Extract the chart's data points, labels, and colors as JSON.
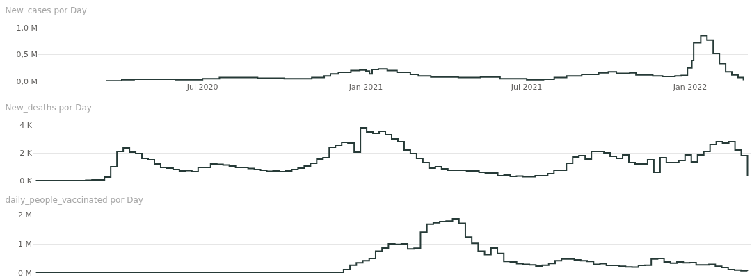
{
  "chart_data": [
    {
      "type": "step",
      "title": "New_cases por Day",
      "color": "#263a37",
      "grid": "y",
      "x": [
        "2020-01-03",
        "2020-03-15",
        "2020-04-01",
        "2020-04-15",
        "2020-06-01",
        "2020-07-01",
        "2020-07-20",
        "2020-08-10",
        "2020-09-01",
        "2020-10-01",
        "2020-11-01",
        "2020-11-15",
        "2020-11-22",
        "2020-12-01",
        "2020-12-15",
        "2020-12-25",
        "2021-01-01",
        "2021-01-05",
        "2021-01-08",
        "2021-01-15",
        "2021-01-25",
        "2021-02-05",
        "2021-02-20",
        "2021-03-01",
        "2021-03-15",
        "2021-04-15",
        "2021-05-10",
        "2021-06-01",
        "2021-07-01",
        "2021-07-20",
        "2021-08-01",
        "2021-08-15",
        "2021-09-01",
        "2021-09-20",
        "2021-10-01",
        "2021-10-10",
        "2021-10-25",
        "2021-11-01",
        "2021-11-20",
        "2021-12-01",
        "2021-12-15",
        "2021-12-22",
        "2021-12-29",
        "2022-01-03",
        "2022-01-05",
        "2022-01-13",
        "2022-01-20",
        "2022-01-27",
        "2022-02-03",
        "2022-02-10",
        "2022-02-17",
        "2022-02-24",
        "2022-03-02"
      ],
      "values": [
        0,
        0.01,
        0.03,
        0.04,
        0.03,
        0.05,
        0.07,
        0.07,
        0.06,
        0.05,
        0.07,
        0.1,
        0.14,
        0.17,
        0.2,
        0.21,
        0.19,
        0.14,
        0.22,
        0.23,
        0.2,
        0.17,
        0.13,
        0.1,
        0.08,
        0.07,
        0.08,
        0.05,
        0.03,
        0.04,
        0.07,
        0.1,
        0.13,
        0.16,
        0.18,
        0.15,
        0.16,
        0.12,
        0.1,
        0.09,
        0.1,
        0.11,
        0.25,
        0.39,
        0.72,
        0.85,
        0.77,
        0.52,
        0.33,
        0.18,
        0.12,
        0.07,
        0.02
      ],
      "xlim": [
        "2019-12-29",
        "2022-03-07"
      ],
      "xticks": [
        {
          "value": "2020-07-01",
          "label": "Jul 2020"
        },
        {
          "value": "2021-01-01",
          "label": "Jan 2021"
        },
        {
          "value": "2021-07-01",
          "label": "Jul 2021"
        },
        {
          "value": "2022-01-01",
          "label": "Jan 2022"
        }
      ],
      "ylim": [
        0,
        1.0
      ],
      "yticks": [
        {
          "value": 0,
          "label": "0,0 M"
        },
        {
          "value": 0.5,
          "label": "0,5 M"
        },
        {
          "value": 1.0,
          "label": "1,0 M"
        }
      ]
    },
    {
      "type": "step",
      "title": "New_deaths por Day",
      "color": "#263a37",
      "grid": "y",
      "tick_labels": "y",
      "categories": [
        null,
        null,
        null,
        null,
        null,
        null,
        null,
        null,
        null,
        null,
        null,
        null,
        null,
        null,
        null,
        null,
        null,
        null,
        null,
        null,
        null,
        null,
        null,
        null,
        null,
        null,
        null,
        null,
        null,
        null,
        null,
        null,
        null,
        null,
        null,
        null,
        null,
        null,
        null,
        null,
        null,
        null,
        null,
        null,
        null,
        null,
        null,
        null,
        null,
        null,
        null,
        null,
        null,
        null,
        null,
        null,
        null,
        null,
        null,
        null,
        null,
        null,
        null,
        null,
        null,
        null,
        null,
        null,
        null,
        null,
        null,
        null,
        null,
        null,
        null,
        null,
        null,
        null,
        null,
        null,
        null,
        null,
        null,
        null,
        null,
        null,
        null,
        null,
        null,
        null,
        null,
        null,
        null,
        null,
        null,
        null,
        null,
        null,
        null,
        null,
        null,
        null,
        null,
        null,
        null,
        null,
        null,
        null,
        null,
        null,
        null,
        null,
        null,
        null,
        null
      ],
      "values": [
        0,
        0,
        0,
        0,
        0,
        0,
        0,
        0,
        0.02,
        0.05,
        0.05,
        0.25,
        1.0,
        2.1,
        2.35,
        2.05,
        1.95,
        1.6,
        1.5,
        1.2,
        0.95,
        0.9,
        0.8,
        0.7,
        0.72,
        0.65,
        0.95,
        0.95,
        1.2,
        1.18,
        1.12,
        1.05,
        0.95,
        0.95,
        0.88,
        0.8,
        0.75,
        0.68,
        0.7,
        0.65,
        0.7,
        0.8,
        0.9,
        1.05,
        1.25,
        1.55,
        1.65,
        2.4,
        2.55,
        2.75,
        2.7,
        2.05,
        3.8,
        3.5,
        3.4,
        3.55,
        3.3,
        3.0,
        2.8,
        2.2,
        1.95,
        1.6,
        1.3,
        0.9,
        1.0,
        0.85,
        0.75,
        0.75,
        0.75,
        0.7,
        0.7,
        0.6,
        0.55,
        0.55,
        0.35,
        0.4,
        0.3,
        0.32,
        0.27,
        0.27,
        0.35,
        0.35,
        0.5,
        0.75,
        0.75,
        1.25,
        1.7,
        1.8,
        1.55,
        2.1,
        2.1,
        2.0,
        1.75,
        1.6,
        1.85,
        1.3,
        1.2,
        1.2,
        1.5,
        0.6,
        1.65,
        1.3,
        1.3,
        1.45,
        1.85,
        1.35,
        1.85,
        2.1,
        2.6,
        2.8,
        2.7,
        2.8,
        2.2,
        1.8,
        0.35
      ],
      "ylim": [
        0,
        4
      ],
      "yticks": [
        {
          "value": 0,
          "label": "0 K"
        },
        {
          "value": 2,
          "label": "2 K"
        },
        {
          "value": 4,
          "label": "4 K"
        }
      ]
    },
    {
      "type": "step",
      "title": "daily_people_vaccinated por Day",
      "color": "#263a37",
      "grid": "y",
      "tick_labels": "y",
      "categories": [
        null,
        null,
        null,
        null,
        null,
        null,
        null,
        null,
        null,
        null,
        null,
        null,
        null,
        null,
        null,
        null,
        null,
        null,
        null,
        null,
        null,
        null,
        null,
        null,
        null,
        null,
        null,
        null,
        null,
        null,
        null,
        null,
        null,
        null,
        null,
        null,
        null,
        null,
        null,
        null,
        null,
        null,
        null,
        null,
        null,
        null,
        null,
        null,
        null,
        null,
        null,
        null,
        null,
        null,
        null,
        null,
        null,
        null,
        null,
        null,
        null,
        null,
        null,
        null,
        null,
        null,
        null,
        null,
        null,
        null,
        null,
        null,
        null,
        null,
        null,
        null,
        null,
        null,
        null,
        null,
        null,
        null,
        null,
        null,
        null,
        null,
        null,
        null,
        null,
        null,
        null,
        null,
        null,
        null,
        null,
        null,
        null,
        null,
        null,
        null,
        null,
        null,
        null,
        null,
        null,
        null,
        null,
        null,
        null,
        null,
        null,
        null
      ],
      "values": [
        0,
        0,
        0,
        0,
        0,
        0,
        0,
        0,
        0,
        0,
        0,
        0,
        0,
        0,
        0,
        0,
        0,
        0,
        0,
        0,
        0,
        0,
        0,
        0,
        0,
        0,
        0,
        0,
        0,
        0,
        0,
        0,
        0,
        0,
        0,
        0,
        0,
        0,
        0,
        0,
        0,
        0,
        0,
        0,
        0,
        0,
        0,
        0,
        0.12,
        0.27,
        0.35,
        0.42,
        0.5,
        0.75,
        0.86,
        1.0,
        0.98,
        1.0,
        0.83,
        0.85,
        1.4,
        1.67,
        1.72,
        1.76,
        1.78,
        1.86,
        1.7,
        1.23,
        1.02,
        0.75,
        0.63,
        0.86,
        0.67,
        0.4,
        0.38,
        0.32,
        0.3,
        0.28,
        0.24,
        0.27,
        0.33,
        0.42,
        0.48,
        0.48,
        0.45,
        0.42,
        0.4,
        0.3,
        0.32,
        0.26,
        0.26,
        0.23,
        0.21,
        0.2,
        0.26,
        0.27,
        0.48,
        0.5,
        0.38,
        0.34,
        0.38,
        0.35,
        0.36,
        0.28,
        0.28,
        0.3,
        0.23,
        0.19,
        0.12,
        0.1,
        0.08,
        0.07
      ],
      "ylim": [
        0,
        2
      ],
      "yticks": [
        {
          "value": 0,
          "label": "0 M"
        },
        {
          "value": 1,
          "label": "1 M"
        },
        {
          "value": 2,
          "label": "2 M"
        }
      ]
    }
  ]
}
